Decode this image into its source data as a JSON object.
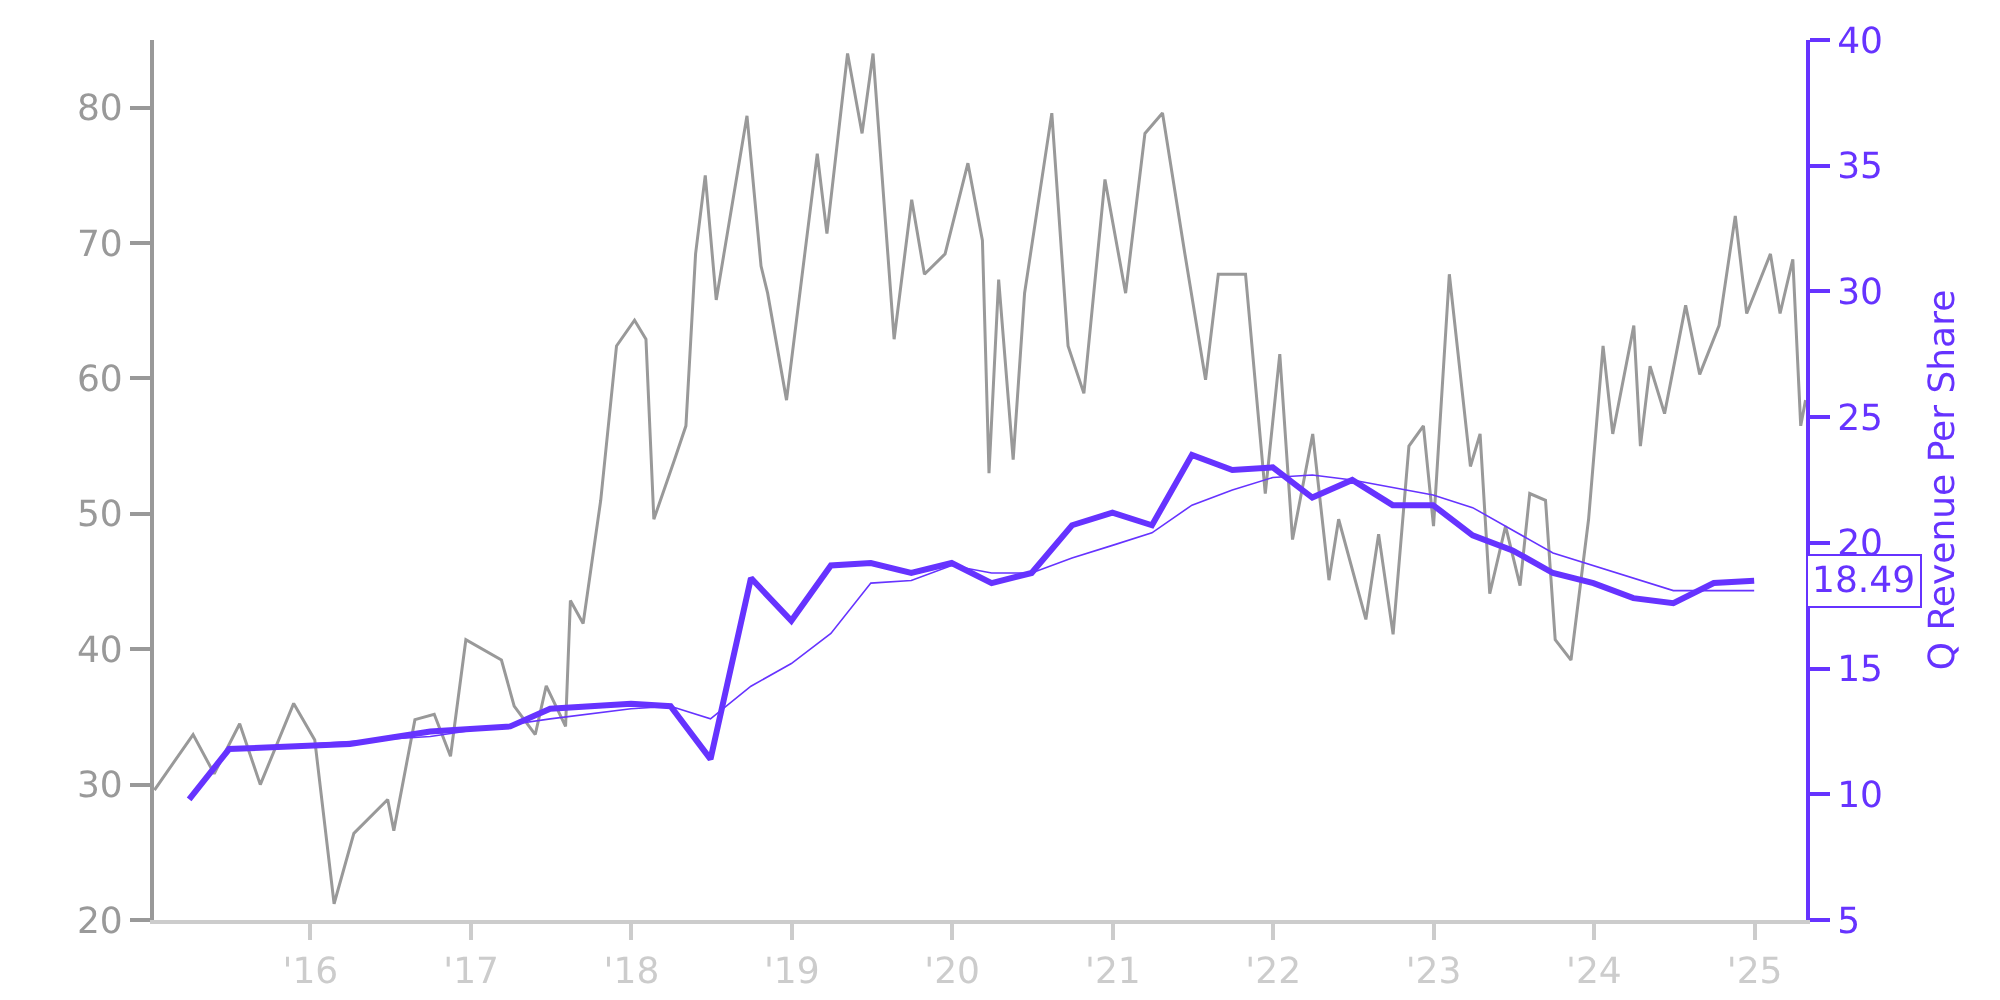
{
  "chart_data": {
    "type": "line",
    "y2label": "Q Revenue Per Share",
    "annotations": [
      "18.49"
    ],
    "xlim": [
      "2015-01-10",
      "2025-04-28"
    ],
    "xticks": [
      {
        "value": "2016-01-01",
        "label": "'16"
      },
      {
        "value": "2017-01-01",
        "label": "'17"
      },
      {
        "value": "2018-01-01",
        "label": "'18"
      },
      {
        "value": "2019-01-01",
        "label": "'19"
      },
      {
        "value": "2020-01-01",
        "label": "'20"
      },
      {
        "value": "2021-01-01",
        "label": "'21"
      },
      {
        "value": "2022-01-01",
        "label": "'22"
      },
      {
        "value": "2023-01-01",
        "label": "'23"
      },
      {
        "value": "2024-01-01",
        "label": "'24"
      },
      {
        "value": "2025-01-01",
        "label": "'25"
      }
    ],
    "ylim": [
      20,
      85
    ],
    "yticks": [
      20,
      30,
      40,
      50,
      60,
      70,
      80
    ],
    "y2lim": [
      5,
      40
    ],
    "y2ticks": [
      5,
      10,
      15,
      20,
      25,
      30,
      35,
      40
    ],
    "grid": false,
    "marker": "none",
    "line_style": "solid",
    "series": [
      {
        "color": "#999999",
        "x": [
          "2015-01-11",
          "2015-04-09",
          "2015-05-27",
          "2015-07-24",
          "2015-09-09",
          "2015-11-24",
          "2016-01-11",
          "2016-02-24",
          "2016-04-09",
          "2016-06-25",
          "2016-07-09",
          "2016-08-26",
          "2016-10-09",
          "2016-11-15",
          "2016-12-20",
          "2017-03-11",
          "2017-04-09",
          "2017-05-27",
          "2017-06-21",
          "2017-08-04",
          "2017-08-15",
          "2017-09-13",
          "2017-10-23",
          "2017-11-28",
          "2018-01-08",
          "2018-02-03",
          "2018-02-21",
          "2018-04-09",
          "2018-05-05",
          "2018-05-27",
          "2018-06-18",
          "2018-07-13",
          "2018-09-21",
          "2018-10-23",
          "2018-11-07",
          "2018-12-20",
          "2019-02-28",
          "2019-03-22",
          "2019-05-08",
          "2019-06-10",
          "2019-07-05",
          "2019-08-22",
          "2019-10-01",
          "2019-10-30",
          "2019-12-16",
          "2020-02-06",
          "2020-03-10",
          "2020-03-25",
          "2020-04-16",
          "2020-05-19",
          "2020-06-14",
          "2020-08-15",
          "2020-09-21",
          "2020-10-27",
          "2020-12-14",
          "2021-01-30",
          "2021-03-15",
          "2021-04-24",
          "2021-06-14",
          "2021-07-31",
          "2021-08-29",
          "2021-10-30",
          "2021-12-14",
          "2022-01-16",
          "2022-02-14",
          "2022-04-01",
          "2022-05-08",
          "2022-05-30",
          "2022-07-31",
          "2022-08-29",
          "2022-10-01",
          "2022-11-06",
          "2022-12-09",
          "2023-01-01",
          "2023-02-06",
          "2023-03-26",
          "2023-04-17",
          "2023-05-09",
          "2023-06-14",
          "2023-07-17",
          "2023-08-08",
          "2023-09-13",
          "2023-10-05",
          "2023-11-10",
          "2023-12-20",
          "2024-01-22",
          "2024-02-13",
          "2024-04-01",
          "2024-04-16",
          "2024-05-08",
          "2024-06-10",
          "2024-07-28",
          "2024-08-29",
          "2024-10-12",
          "2024-11-18",
          "2024-12-14",
          "2025-02-06",
          "2025-02-28",
          "2025-03-29",
          "2025-04-16",
          "2025-04-27"
        ],
        "values": [
          29.6,
          33.7,
          30.8,
          34.5,
          30.0,
          36.0,
          33.3,
          21.2,
          26.4,
          28.9,
          26.6,
          34.8,
          35.2,
          32.1,
          40.7,
          39.2,
          35.8,
          33.7,
          37.3,
          34.3,
          43.6,
          41.9,
          51.0,
          62.4,
          64.3,
          62.9,
          49.6,
          54.0,
          56.5,
          69.2,
          75.0,
          65.8,
          79.4,
          68.3,
          66.3,
          58.4,
          76.6,
          70.7,
          84.0,
          78.1,
          84.0,
          62.9,
          73.2,
          67.7,
          69.2,
          75.9,
          70.2,
          53.0,
          67.3,
          54.0,
          66.3,
          79.6,
          62.4,
          58.9,
          74.7,
          66.3,
          78.1,
          79.6,
          69.2,
          59.9,
          67.7,
          67.7,
          51.5,
          61.8,
          48.1,
          55.9,
          45.1,
          49.6,
          42.2,
          48.5,
          41.1,
          55.0,
          56.5,
          49.1,
          67.7,
          53.5,
          55.9,
          44.1,
          49.1,
          44.7,
          51.5,
          51.0,
          40.7,
          39.2,
          49.6,
          62.4,
          55.9,
          63.9,
          55.0,
          60.9,
          57.4,
          65.4,
          60.3,
          63.9,
          72.0,
          64.8,
          69.2,
          64.8,
          68.8,
          56.5,
          58.4
        ]
      },
      {
        "color": "#6633ff",
        "axis": "y2",
        "x": [
          "2015-03-31",
          "2015-06-30",
          "2016-03-31",
          "2016-09-30",
          "2017-03-31",
          "2017-06-30",
          "2017-12-31",
          "2018-03-31",
          "2018-06-30",
          "2018-09-30",
          "2018-12-31",
          "2019-03-31",
          "2019-06-30",
          "2019-09-30",
          "2019-12-31",
          "2020-03-31",
          "2020-06-30",
          "2020-09-30",
          "2020-12-31",
          "2021-03-31",
          "2021-06-30",
          "2021-09-30",
          "2021-12-31",
          "2022-03-31",
          "2022-06-30",
          "2022-09-30",
          "2022-12-31",
          "2023-03-31",
          "2023-06-30",
          "2023-09-30",
          "2023-12-31",
          "2024-03-31",
          "2024-06-30",
          "2024-09-30",
          "2024-12-31"
        ],
        "values": [
          9.8,
          11.8,
          12.0,
          12.5,
          12.7,
          13.4,
          13.6,
          13.5,
          11.4,
          18.6,
          16.9,
          19.1,
          19.2,
          18.8,
          19.2,
          18.4,
          18.8,
          20.7,
          21.2,
          20.7,
          23.5,
          22.9,
          23.0,
          21.8,
          22.5,
          21.5,
          21.5,
          20.3,
          19.7,
          18.8,
          18.4,
          17.8,
          17.6,
          18.4,
          18.49
        ]
      },
      {
        "color": "#6633ff",
        "axis": "y2",
        "x": [
          "2015-06-30",
          "2016-09-30",
          "2017-06-30",
          "2017-12-31",
          "2018-03-31",
          "2018-06-30",
          "2018-09-30",
          "2018-12-31",
          "2019-03-31",
          "2019-06-30",
          "2019-09-30",
          "2019-12-31",
          "2020-03-31",
          "2020-06-30",
          "2020-09-30",
          "2020-12-31",
          "2021-03-31",
          "2021-06-30",
          "2021-09-30",
          "2021-12-31",
          "2022-03-31",
          "2022-06-30",
          "2022-12-31",
          "2023-03-31",
          "2023-09-30",
          "2024-06-30",
          "2024-12-31"
        ],
        "values": [
          11.8,
          12.3,
          13.0,
          13.4,
          13.5,
          13.0,
          14.3,
          15.2,
          16.4,
          18.4,
          18.5,
          19.1,
          18.8,
          18.8,
          19.4,
          19.9,
          20.4,
          21.5,
          22.1,
          22.6,
          22.7,
          22.5,
          21.9,
          21.4,
          19.6,
          18.1,
          18.1
        ]
      }
    ]
  }
}
